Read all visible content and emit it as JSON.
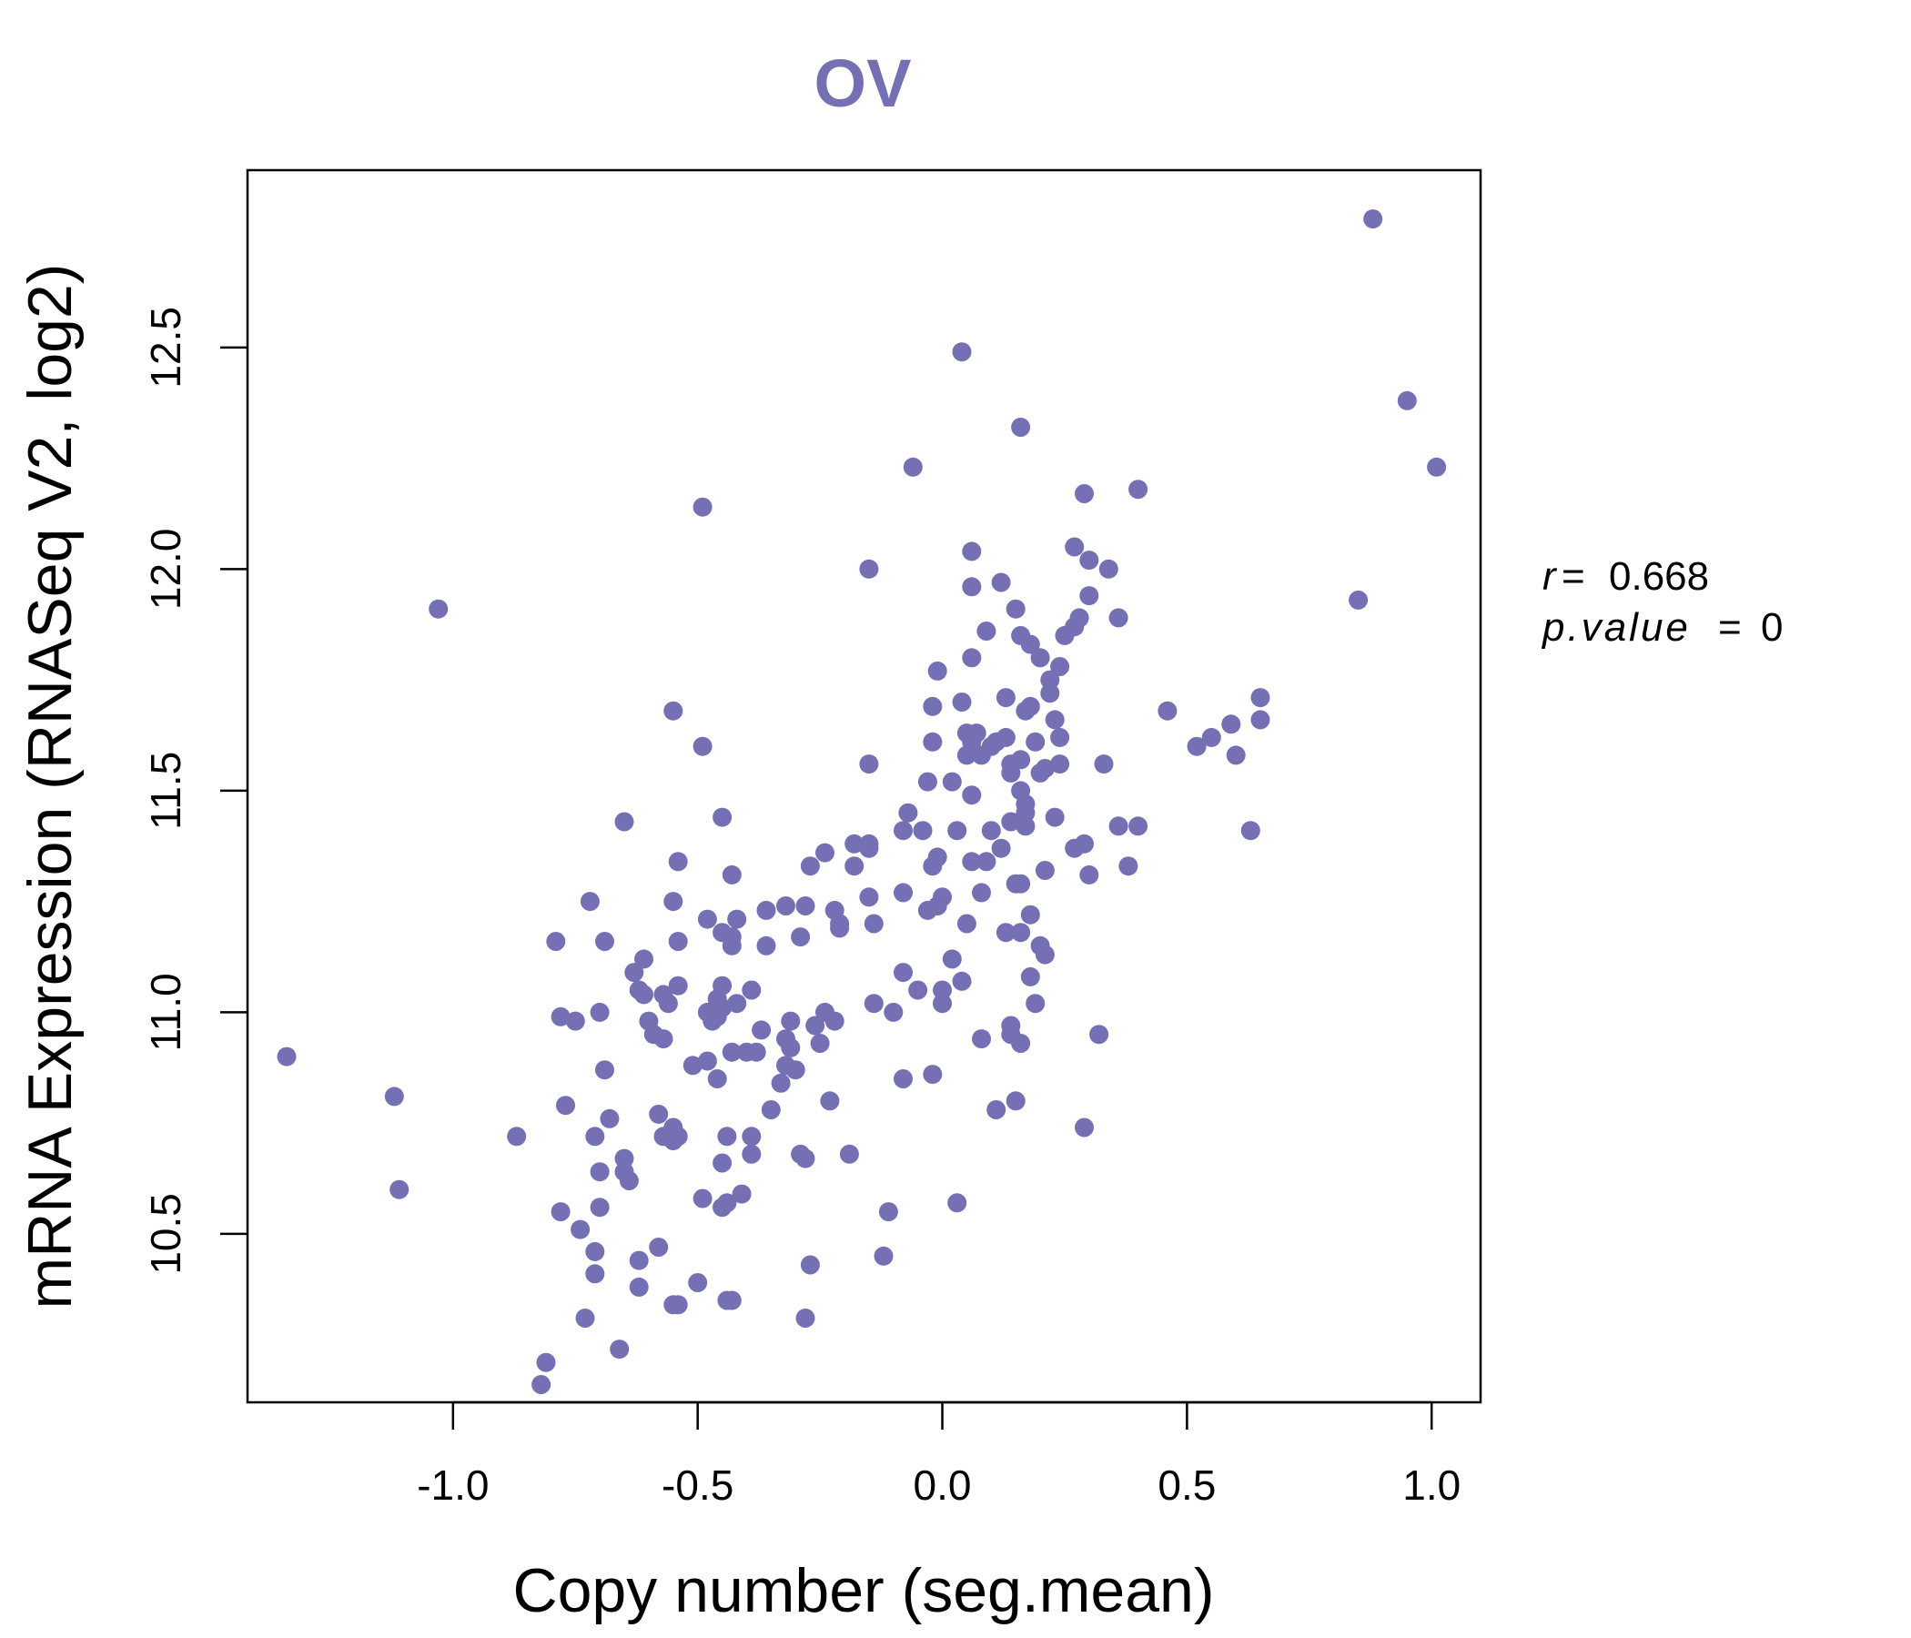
{
  "chart_data": {
    "type": "scatter",
    "title": "OV",
    "xlabel": "Copy number (seg.mean)",
    "ylabel": "mRNA Expression (RNASeq V2, log2)",
    "xlim": [
      -1.42,
      1.1
    ],
    "ylim": [
      10.12,
      12.9
    ],
    "x_ticks": [
      -1.0,
      -0.5,
      0.0,
      0.5,
      1.0
    ],
    "x_tick_labels": [
      "-1.0",
      "-0.5",
      "0.0",
      "0.5",
      "1.0"
    ],
    "y_ticks": [
      10.5,
      11.0,
      11.5,
      12.0,
      12.5
    ],
    "y_tick_labels": [
      "10.5",
      "11.0",
      "11.5",
      "12.0",
      "12.5"
    ],
    "point_color": "#7570b3",
    "stats": {
      "r": "0.668",
      "p_value": "0"
    },
    "points": [
      [
        0.88,
        12.79
      ],
      [
        0.04,
        12.49
      ],
      [
        0.95,
        12.38
      ],
      [
        0.16,
        12.32
      ],
      [
        1.01,
        12.23
      ],
      [
        -0.06,
        12.23
      ],
      [
        0.4,
        12.18
      ],
      [
        0.29,
        12.17
      ],
      [
        -0.49,
        12.14
      ],
      [
        0.27,
        12.05
      ],
      [
        0.06,
        12.04
      ],
      [
        0.3,
        12.02
      ],
      [
        -0.15,
        12.0
      ],
      [
        0.34,
        12.0
      ],
      [
        0.12,
        11.97
      ],
      [
        0.06,
        11.96
      ],
      [
        0.3,
        11.94
      ],
      [
        0.85,
        11.93
      ],
      [
        -1.03,
        11.91
      ],
      [
        0.15,
        11.91
      ],
      [
        0.28,
        11.89
      ],
      [
        0.36,
        11.89
      ],
      [
        0.27,
        11.87
      ],
      [
        0.09,
        11.86
      ],
      [
        0.16,
        11.85
      ],
      [
        0.25,
        11.85
      ],
      [
        0.18,
        11.83
      ],
      [
        0.06,
        11.8
      ],
      [
        0.2,
        11.8
      ],
      [
        0.24,
        11.78
      ],
      [
        -0.01,
        11.77
      ],
      [
        0.22,
        11.75
      ],
      [
        0.22,
        11.72
      ],
      [
        0.13,
        11.71
      ],
      [
        0.04,
        11.7
      ],
      [
        0.65,
        11.71
      ],
      [
        0.18,
        11.69
      ],
      [
        -0.02,
        11.69
      ],
      [
        0.17,
        11.68
      ],
      [
        0.46,
        11.68
      ],
      [
        -0.55,
        11.68
      ],
      [
        0.23,
        11.66
      ],
      [
        0.65,
        11.66
      ],
      [
        0.59,
        11.65
      ],
      [
        0.05,
        11.63
      ],
      [
        0.07,
        11.63
      ],
      [
        0.13,
        11.62
      ],
      [
        0.24,
        11.62
      ],
      [
        0.55,
        11.62
      ],
      [
        0.11,
        11.61
      ],
      [
        -0.02,
        11.61
      ],
      [
        0.06,
        11.61
      ],
      [
        0.19,
        11.61
      ],
      [
        0.1,
        11.6
      ],
      [
        0.52,
        11.6
      ],
      [
        -0.49,
        11.6
      ],
      [
        0.06,
        11.59
      ],
      [
        0.08,
        11.58
      ],
      [
        0.05,
        11.58
      ],
      [
        0.6,
        11.58
      ],
      [
        0.16,
        11.57
      ],
      [
        0.14,
        11.56
      ],
      [
        0.24,
        11.56
      ],
      [
        0.33,
        11.56
      ],
      [
        -0.15,
        11.56
      ],
      [
        0.21,
        11.55
      ],
      [
        0.2,
        11.54
      ],
      [
        0.14,
        11.54
      ],
      [
        0.02,
        11.52
      ],
      [
        -0.03,
        11.52
      ],
      [
        0.16,
        11.5
      ],
      [
        0.06,
        11.49
      ],
      [
        0.17,
        11.47
      ],
      [
        0.17,
        11.45
      ],
      [
        -0.07,
        11.45
      ],
      [
        -0.45,
        11.44
      ],
      [
        0.23,
        11.44
      ],
      [
        0.14,
        11.43
      ],
      [
        -0.65,
        11.43
      ],
      [
        0.36,
        11.42
      ],
      [
        0.4,
        11.42
      ],
      [
        0.17,
        11.42
      ],
      [
        0.1,
        11.41
      ],
      [
        -0.04,
        11.41
      ],
      [
        0.03,
        11.41
      ],
      [
        -0.08,
        11.41
      ],
      [
        0.63,
        11.41
      ],
      [
        -0.18,
        11.38
      ],
      [
        -0.15,
        11.38
      ],
      [
        0.29,
        11.38
      ],
      [
        0.12,
        11.37
      ],
      [
        0.27,
        11.37
      ],
      [
        -0.15,
        11.37
      ],
      [
        -0.24,
        11.36
      ],
      [
        -0.01,
        11.35
      ],
      [
        0.09,
        11.34
      ],
      [
        -0.54,
        11.34
      ],
      [
        0.06,
        11.34
      ],
      [
        -0.27,
        11.33
      ],
      [
        -0.18,
        11.33
      ],
      [
        -0.02,
        11.33
      ],
      [
        0.38,
        11.33
      ],
      [
        0.21,
        11.32
      ],
      [
        0.3,
        11.31
      ],
      [
        -0.43,
        11.31
      ],
      [
        0.15,
        11.29
      ],
      [
        0.16,
        11.29
      ],
      [
        0.08,
        11.27
      ],
      [
        -0.08,
        11.27
      ],
      [
        -0.15,
        11.26
      ],
      [
        0.0,
        11.26
      ],
      [
        -0.55,
        11.25
      ],
      [
        -0.72,
        11.25
      ],
      [
        -0.32,
        11.24
      ],
      [
        -0.36,
        11.23
      ],
      [
        -0.28,
        11.24
      ],
      [
        -0.22,
        11.23
      ],
      [
        -0.01,
        11.24
      ],
      [
        -0.03,
        11.23
      ],
      [
        0.18,
        11.22
      ],
      [
        -0.21,
        11.2
      ],
      [
        -0.42,
        11.21
      ],
      [
        -0.48,
        11.21
      ],
      [
        0.05,
        11.2
      ],
      [
        -0.14,
        11.2
      ],
      [
        -0.21,
        11.19
      ],
      [
        0.16,
        11.18
      ],
      [
        -0.45,
        11.18
      ],
      [
        0.13,
        11.18
      ],
      [
        -0.43,
        11.17
      ],
      [
        -0.29,
        11.17
      ],
      [
        -0.69,
        11.16
      ],
      [
        -0.79,
        11.16
      ],
      [
        -0.54,
        11.16
      ],
      [
        0.2,
        11.15
      ],
      [
        -0.43,
        11.15
      ],
      [
        -0.36,
        11.15
      ],
      [
        0.21,
        11.13
      ],
      [
        0.02,
        11.12
      ],
      [
        -0.61,
        11.12
      ],
      [
        -0.63,
        11.09
      ],
      [
        -0.08,
        11.09
      ],
      [
        0.18,
        11.08
      ],
      [
        0.04,
        11.07
      ],
      [
        -0.45,
        11.06
      ],
      [
        -0.54,
        11.06
      ],
      [
        -0.62,
        11.05
      ],
      [
        -0.05,
        11.05
      ],
      [
        -0.39,
        11.05
      ],
      [
        0.0,
        11.05
      ],
      [
        -0.61,
        11.04
      ],
      [
        -0.57,
        11.04
      ],
      [
        -0.46,
        11.03
      ],
      [
        -0.42,
        11.02
      ],
      [
        0.19,
        11.02
      ],
      [
        -0.56,
        11.02
      ],
      [
        0.0,
        11.02
      ],
      [
        -0.45,
        11.01
      ],
      [
        -0.14,
        11.02
      ],
      [
        -0.7,
        11.0
      ],
      [
        -0.48,
        11.0
      ],
      [
        -0.24,
        11.0
      ],
      [
        -0.1,
        11.0
      ],
      [
        -0.46,
        10.99
      ],
      [
        -0.78,
        10.99
      ],
      [
        -0.31,
        10.98
      ],
      [
        -0.47,
        10.98
      ],
      [
        -0.6,
        10.98
      ],
      [
        -0.22,
        10.98
      ],
      [
        -0.75,
        10.98
      ],
      [
        -0.26,
        10.97
      ],
      [
        0.14,
        10.97
      ],
      [
        -0.37,
        10.96
      ],
      [
        0.32,
        10.95
      ],
      [
        -0.59,
        10.95
      ],
      [
        0.14,
        10.95
      ],
      [
        -0.32,
        10.94
      ],
      [
        -0.57,
        10.94
      ],
      [
        -0.25,
        10.93
      ],
      [
        0.16,
        10.93
      ],
      [
        0.08,
        10.94
      ],
      [
        -0.31,
        10.92
      ],
      [
        -0.43,
        10.91
      ],
      [
        -0.4,
        10.91
      ],
      [
        -0.38,
        10.91
      ],
      [
        -1.34,
        10.9
      ],
      [
        -0.48,
        10.89
      ],
      [
        -0.32,
        10.88
      ],
      [
        -0.51,
        10.88
      ],
      [
        -0.3,
        10.87
      ],
      [
        -0.69,
        10.87
      ],
      [
        -0.02,
        10.86
      ],
      [
        -0.46,
        10.85
      ],
      [
        -0.08,
        10.85
      ],
      [
        -0.33,
        10.84
      ],
      [
        -1.12,
        10.81
      ],
      [
        0.15,
        10.8
      ],
      [
        -0.23,
        10.8
      ],
      [
        -0.77,
        10.79
      ],
      [
        0.11,
        10.78
      ],
      [
        -0.35,
        10.78
      ],
      [
        -0.58,
        10.77
      ],
      [
        -0.68,
        10.76
      ],
      [
        -0.55,
        10.74
      ],
      [
        -0.57,
        10.72
      ],
      [
        0.29,
        10.74
      ],
      [
        -0.87,
        10.72
      ],
      [
        -0.54,
        10.72
      ],
      [
        -0.44,
        10.72
      ],
      [
        -0.39,
        10.72
      ],
      [
        -0.71,
        10.72
      ],
      [
        -0.55,
        10.71
      ],
      [
        -0.29,
        10.68
      ],
      [
        -0.39,
        10.68
      ],
      [
        -0.19,
        10.68
      ],
      [
        -0.28,
        10.67
      ],
      [
        -0.65,
        10.67
      ],
      [
        -0.45,
        10.66
      ],
      [
        -0.65,
        10.64
      ],
      [
        -0.7,
        10.64
      ],
      [
        -0.64,
        10.62
      ],
      [
        -1.11,
        10.6
      ],
      [
        -0.41,
        10.59
      ],
      [
        -0.49,
        10.58
      ],
      [
        -0.44,
        10.57
      ],
      [
        -0.45,
        10.56
      ],
      [
        0.03,
        10.57
      ],
      [
        -0.7,
        10.56
      ],
      [
        -0.78,
        10.55
      ],
      [
        -0.11,
        10.55
      ],
      [
        -0.74,
        10.51
      ],
      [
        -0.58,
        10.47
      ],
      [
        -0.71,
        10.46
      ],
      [
        -0.12,
        10.45
      ],
      [
        -0.62,
        10.44
      ],
      [
        -0.27,
        10.43
      ],
      [
        -0.71,
        10.41
      ],
      [
        -0.5,
        10.39
      ],
      [
        -0.62,
        10.38
      ],
      [
        -0.44,
        10.35
      ],
      [
        -0.43,
        10.35
      ],
      [
        -0.55,
        10.34
      ],
      [
        -0.54,
        10.34
      ],
      [
        -0.73,
        10.31
      ],
      [
        -0.28,
        10.31
      ],
      [
        -0.66,
        10.24
      ],
      [
        -0.81,
        10.21
      ],
      [
        -0.82,
        10.16
      ]
    ]
  }
}
